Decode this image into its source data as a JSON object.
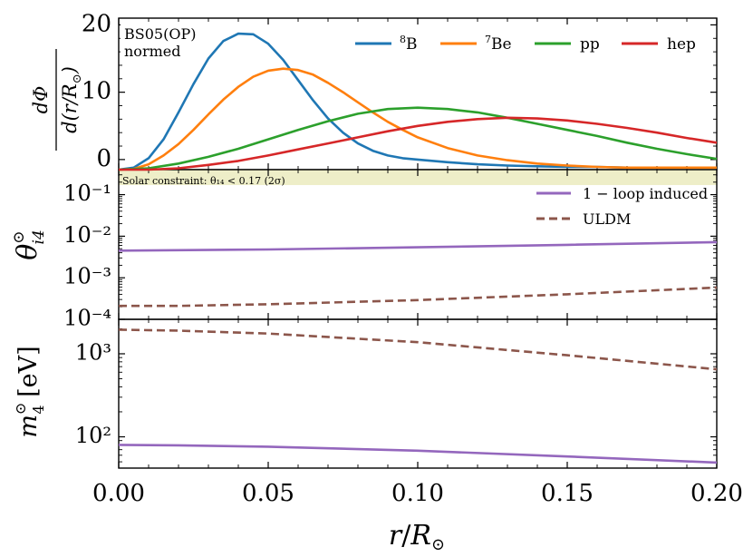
{
  "chart_data": {
    "type": "line",
    "xlabel": "r/R⊙",
    "xlim": [
      0.0,
      0.2
    ],
    "x_ticks": [
      0.0,
      0.05,
      0.1,
      0.15,
      0.2
    ],
    "x_tick_labels": [
      "0.00",
      "0.05",
      "0.10",
      "0.15",
      "0.20"
    ],
    "panels": [
      {
        "id": "flux",
        "ylabel": "dΦ / d(r/R⊙)",
        "yscale": "linear",
        "ylim": [
          -1.5,
          21
        ],
        "y_ticks": [
          0,
          10,
          20
        ],
        "y_tick_labels": [
          "0",
          "10",
          "20"
        ],
        "annotation": [
          "BS05(OP)",
          "normed"
        ],
        "legend_position": "top-right",
        "series": [
          {
            "name": "8B",
            "color": "#1f77b4",
            "x": [
              0.0,
              0.005,
              0.01,
              0.015,
              0.02,
              0.025,
              0.03,
              0.035,
              0.04,
              0.045,
              0.05,
              0.055,
              0.06,
              0.065,
              0.07,
              0.075,
              0.08,
              0.085,
              0.09,
              0.095,
              0.1,
              0.11,
              0.12,
              0.13,
              0.14,
              0.15,
              0.16,
              0.17,
              0.18,
              0.19,
              0.2
            ],
            "y": [
              -1.5,
              -1.2,
              0.2,
              3.0,
              7.0,
              11.2,
              15.0,
              17.6,
              18.7,
              18.6,
              17.2,
              14.8,
              11.8,
              8.8,
              6.1,
              4.0,
              2.4,
              1.3,
              0.6,
              0.2,
              0.0,
              -0.4,
              -0.7,
              -0.9,
              -1.0,
              -1.1,
              -1.1,
              -1.2,
              -1.2,
              -1.2,
              -1.2
            ]
          },
          {
            "name": "7Be",
            "color": "#ff7f0e",
            "x": [
              0.0,
              0.005,
              0.01,
              0.015,
              0.02,
              0.025,
              0.03,
              0.035,
              0.04,
              0.045,
              0.05,
              0.055,
              0.06,
              0.065,
              0.07,
              0.075,
              0.08,
              0.085,
              0.09,
              0.095,
              0.1,
              0.11,
              0.12,
              0.13,
              0.14,
              0.15,
              0.16,
              0.17,
              0.18,
              0.19,
              0.2
            ],
            "y": [
              -1.5,
              -1.4,
              -0.7,
              0.6,
              2.3,
              4.4,
              6.7,
              8.9,
              10.8,
              12.3,
              13.2,
              13.5,
              13.3,
              12.6,
              11.4,
              10.0,
              8.5,
              7.0,
              5.6,
              4.4,
              3.3,
              1.7,
              0.6,
              -0.1,
              -0.6,
              -0.9,
              -1.1,
              -1.2,
              -1.2,
              -1.2,
              -1.2
            ]
          },
          {
            "name": "pp",
            "color": "#2ca02c",
            "x": [
              0.0,
              0.01,
              0.02,
              0.03,
              0.04,
              0.05,
              0.06,
              0.07,
              0.08,
              0.09,
              0.1,
              0.11,
              0.12,
              0.13,
              0.14,
              0.15,
              0.16,
              0.17,
              0.18,
              0.19,
              0.2
            ],
            "y": [
              -1.5,
              -1.3,
              -0.6,
              0.4,
              1.6,
              3.0,
              4.4,
              5.7,
              6.8,
              7.5,
              7.7,
              7.5,
              7.0,
              6.2,
              5.3,
              4.4,
              3.5,
              2.5,
              1.6,
              0.8,
              0.1
            ]
          },
          {
            "name": "hep",
            "color": "#d62728",
            "x": [
              0.0,
              0.01,
              0.02,
              0.03,
              0.04,
              0.05,
              0.06,
              0.07,
              0.08,
              0.09,
              0.1,
              0.11,
              0.12,
              0.13,
              0.14,
              0.15,
              0.16,
              0.17,
              0.18,
              0.19,
              0.2
            ],
            "y": [
              -1.5,
              -1.5,
              -1.3,
              -0.8,
              -0.2,
              0.6,
              1.5,
              2.4,
              3.3,
              4.2,
              5.0,
              5.6,
              6.0,
              6.2,
              6.1,
              5.8,
              5.3,
              4.7,
              4.0,
              3.2,
              2.5
            ]
          }
        ]
      },
      {
        "id": "theta",
        "ylabel": "θ⊙ i4",
        "yscale": "log",
        "ylim": [
          0.0001,
          0.4
        ],
        "y_ticks": [
          0.0001,
          0.001,
          0.01,
          0.1
        ],
        "y_tick_labels": [
          "10⁻⁴",
          "10⁻³",
          "10⁻²",
          "10⁻¹"
        ],
        "band": {
          "from": 0.17,
          "to": 0.4,
          "color": "#eeeec8",
          "label": "Solar constraint: θ₁₄ < 0.17 (2σ)"
        },
        "legend_position": "top-right",
        "series": [
          {
            "name": "1 − loop induced",
            "color": "#9467bd",
            "style": "solid",
            "x": [
              0.0,
              0.05,
              0.1,
              0.15,
              0.2
            ],
            "y": [
              0.0045,
              0.0048,
              0.0054,
              0.0062,
              0.0072
            ]
          },
          {
            "name": "ULDM",
            "color": "#8c564b",
            "style": "dashed",
            "x": [
              0.0,
              0.02,
              0.05,
              0.1,
              0.15,
              0.2
            ],
            "y": [
              0.00021,
              0.00021,
              0.00023,
              0.00029,
              0.0004,
              0.00058
            ]
          }
        ]
      },
      {
        "id": "mass",
        "ylabel": "m⊙ 4 [eV]",
        "yscale": "log",
        "ylim": [
          42,
          2600
        ],
        "y_ticks": [
          100,
          1000
        ],
        "y_tick_labels": [
          "10²",
          "10³"
        ],
        "series": [
          {
            "name": "ULDM",
            "color": "#8c564b",
            "style": "dashed",
            "x": [
              0.0,
              0.02,
              0.05,
              0.1,
              0.15,
              0.2
            ],
            "y": [
              1950,
              1900,
              1750,
              1380,
              960,
              650
            ]
          },
          {
            "name": "1-loop induced",
            "color": "#9467bd",
            "style": "solid",
            "x": [
              0.0,
              0.02,
              0.05,
              0.1,
              0.15,
              0.2
            ],
            "y": [
              80,
              79,
              76,
              68,
              58,
              49
            ]
          }
        ]
      }
    ]
  }
}
